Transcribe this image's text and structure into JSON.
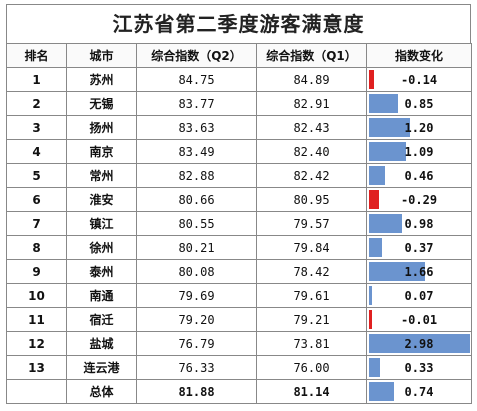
{
  "title": "江苏省第二季度游客满意度",
  "headers": {
    "rank": "排名",
    "city": "城市",
    "q2": "综合指数（Q2）",
    "q1": "综合指数（Q1）",
    "change": "指数变化"
  },
  "colors": {
    "positive_bar": "#6b94cf",
    "negative_bar": "#e02020"
  },
  "chart_data": {
    "type": "table",
    "title": "江苏省第二季度游客满意度",
    "rows": [
      {
        "rank": "1",
        "city": "苏州",
        "q2": "84.75",
        "q1": "84.89",
        "change": "-0.14",
        "change_value": -0.14
      },
      {
        "rank": "2",
        "city": "无锡",
        "q2": "83.77",
        "q1": "82.91",
        "change": "0.85",
        "change_value": 0.85
      },
      {
        "rank": "3",
        "city": "扬州",
        "q2": "83.63",
        "q1": "82.43",
        "change": "1.20",
        "change_value": 1.2
      },
      {
        "rank": "4",
        "city": "南京",
        "q2": "83.49",
        "q1": "82.40",
        "change": "1.09",
        "change_value": 1.09
      },
      {
        "rank": "5",
        "city": "常州",
        "q2": "82.88",
        "q1": "82.42",
        "change": "0.46",
        "change_value": 0.46
      },
      {
        "rank": "6",
        "city": "淮安",
        "q2": "80.66",
        "q1": "80.95",
        "change": "-0.29",
        "change_value": -0.29
      },
      {
        "rank": "7",
        "city": "镇江",
        "q2": "80.55",
        "q1": "79.57",
        "change": "0.98",
        "change_value": 0.98
      },
      {
        "rank": "8",
        "city": "徐州",
        "q2": "80.21",
        "q1": "79.84",
        "change": "0.37",
        "change_value": 0.37
      },
      {
        "rank": "9",
        "city": "泰州",
        "q2": "80.08",
        "q1": "78.42",
        "change": "1.66",
        "change_value": 1.66
      },
      {
        "rank": "10",
        "city": "南通",
        "q2": "79.69",
        "q1": "79.61",
        "change": "0.07",
        "change_value": 0.07
      },
      {
        "rank": "11",
        "city": "宿迁",
        "q2": "79.20",
        "q1": "79.21",
        "change": "-0.01",
        "change_value": -0.01
      },
      {
        "rank": "12",
        "city": "盐城",
        "q2": "76.79",
        "q1": "73.81",
        "change": "2.98",
        "change_value": 2.98
      },
      {
        "rank": "13",
        "city": "连云港",
        "q2": "76.33",
        "q1": "76.00",
        "change": "0.33",
        "change_value": 0.33
      }
    ],
    "total": {
      "rank": "",
      "city": "总体",
      "q2": "81.88",
      "q1": "81.14",
      "change": "0.74",
      "change_value": 0.74
    },
    "change_max": 2.98
  }
}
